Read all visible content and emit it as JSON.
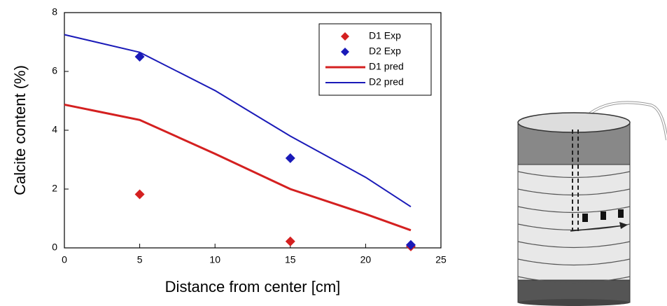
{
  "chart_data": {
    "type": "line",
    "xlabel": "Distance from center [cm]",
    "ylabel": "Calcite content (%)",
    "xlim": [
      0,
      25
    ],
    "xticks": [
      0,
      5,
      10,
      15,
      20,
      25
    ],
    "ylim": [
      0,
      8
    ],
    "yticks": [
      0,
      2,
      4,
      6,
      8
    ],
    "legend": "upper right",
    "series": [
      {
        "name": "D1 Exp",
        "color": "#d42020",
        "mode": "markers",
        "x": [
          5,
          15,
          23
        ],
        "values": [
          1.82,
          0.22,
          0.05
        ]
      },
      {
        "name": "D2 Exp",
        "color": "#1a1ab8",
        "mode": "markers",
        "x": [
          5,
          15,
          23
        ],
        "values": [
          6.5,
          3.05,
          0.1
        ]
      },
      {
        "name": "D1 pred",
        "color": "#d42020",
        "mode": "lines",
        "x": [
          0,
          5,
          10,
          15,
          20,
          23
        ],
        "values": [
          4.87,
          4.35,
          3.2,
          2.0,
          1.15,
          0.6
        ]
      },
      {
        "name": "D2 pred",
        "color": "#1a1ab8",
        "mode": "lines",
        "x": [
          0,
          5,
          10,
          15,
          20,
          23
        ],
        "values": [
          7.25,
          6.65,
          5.35,
          3.8,
          2.4,
          1.4
        ]
      }
    ]
  }
}
